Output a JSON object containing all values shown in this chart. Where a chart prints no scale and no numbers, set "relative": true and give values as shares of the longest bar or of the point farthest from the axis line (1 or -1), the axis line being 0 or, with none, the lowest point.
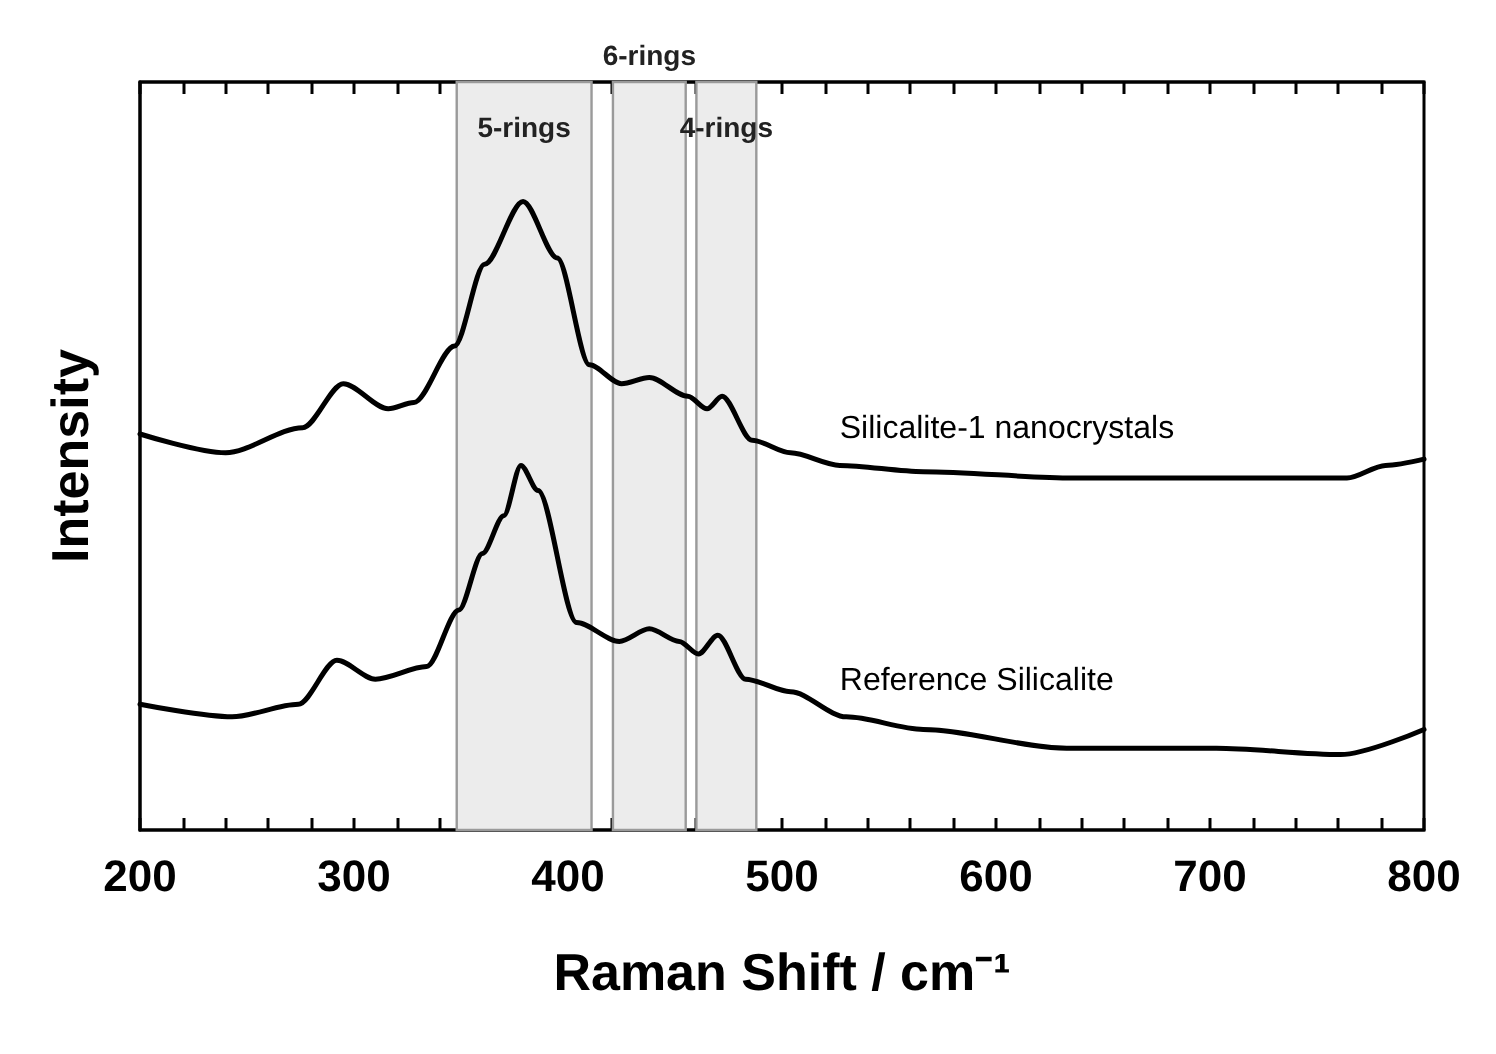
{
  "chart_data": {
    "type": "line",
    "relative": true,
    "xlabel": "Raman Shift / cm⁻¹",
    "ylabel": "Intensity",
    "xlim": [
      200,
      800
    ],
    "xticks": [
      200,
      {
        "value": 220,
        "label": null
      },
      {
        "value": 240,
        "label": null
      },
      {
        "value": 260,
        "label": null
      },
      {
        "value": 280,
        "label": null
      },
      300,
      {
        "value": 320,
        "label": null
      },
      {
        "value": 340,
        "label": null
      },
      {
        "value": 360,
        "label": null
      },
      {
        "value": 380,
        "label": null
      },
      400,
      {
        "value": 420,
        "label": null
      },
      {
        "value": 440,
        "label": null
      },
      {
        "value": 460,
        "label": null
      },
      {
        "value": 480,
        "label": null
      },
      500,
      {
        "value": 520,
        "label": null
      },
      {
        "value": 540,
        "label": null
      },
      {
        "value": 560,
        "label": null
      },
      {
        "value": 580,
        "label": null
      },
      600,
      {
        "value": 620,
        "label": null
      },
      {
        "value": 640,
        "label": null
      },
      {
        "value": 660,
        "label": null
      },
      {
        "value": 680,
        "label": null
      },
      700,
      {
        "value": 720,
        "label": null
      },
      {
        "value": 740,
        "label": null
      },
      {
        "value": 760,
        "label": null
      },
      {
        "value": 780,
        "label": null
      },
      800
    ],
    "tick_labels": "x",
    "grid": false,
    "legend": false,
    "marker": "none",
    "line_style": "solid",
    "series": [
      {
        "name": "Silicalite-1 nanocrystals",
        "color": "#000000",
        "x": [
          200,
          240,
          276,
          295,
          316,
          328,
          347,
          361,
          379,
          395,
          410,
          425,
          438,
          456,
          465,
          472,
          486,
          504,
          527,
          566,
          636,
          703,
          764,
          782,
          800
        ],
        "values": [
          0.63,
          0.6,
          0.64,
          0.71,
          0.67,
          0.68,
          0.77,
          0.9,
          1.0,
          0.91,
          0.74,
          0.71,
          0.72,
          0.69,
          0.67,
          0.69,
          0.62,
          0.6,
          0.58,
          0.57,
          0.56,
          0.56,
          0.56,
          0.58,
          0.59
        ]
      },
      {
        "name": "Reference Silicalite",
        "color": "#000000",
        "x": [
          200,
          243,
          274,
          292,
          310,
          334,
          349,
          360,
          370,
          378,
          386,
          404,
          424,
          438,
          452,
          461,
          470,
          483,
          504,
          530,
          566,
          633,
          703,
          761,
          800
        ],
        "values": [
          0.2,
          0.18,
          0.2,
          0.27,
          0.24,
          0.26,
          0.35,
          0.44,
          0.5,
          0.58,
          0.54,
          0.33,
          0.3,
          0.32,
          0.3,
          0.28,
          0.31,
          0.24,
          0.22,
          0.18,
          0.16,
          0.13,
          0.13,
          0.12,
          0.16
        ]
      }
    ],
    "bands": [
      {
        "axis": "x",
        "from": 348,
        "to": 411,
        "label": "5-rings",
        "color": "#ececec"
      },
      {
        "axis": "x",
        "from": 421,
        "to": 455,
        "label": "6-rings",
        "color": "#ececec"
      },
      {
        "axis": "x",
        "from": 460,
        "to": 488,
        "label": "4-rings",
        "color": "#ececec"
      }
    ]
  }
}
